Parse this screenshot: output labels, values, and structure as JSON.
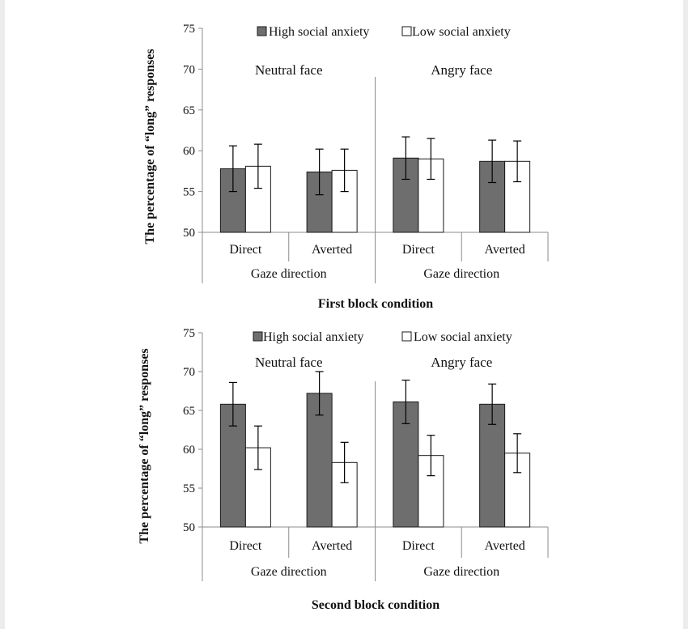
{
  "legend": {
    "high": "High social anxiety",
    "low": "Low social anxiety"
  },
  "colors": {
    "high": "#6e6e6e",
    "low": "#ffffff",
    "stroke": "#1a1a1a",
    "axis": "#8c8c8c"
  },
  "chart_data": [
    {
      "type": "bar",
      "caption": "First block condition",
      "ylabel": "The percentage of “long” responses",
      "ylim": [
        50,
        75
      ],
      "yticks": [
        50,
        55,
        60,
        65,
        70,
        75
      ],
      "groups": [
        {
          "face": "Neutral face",
          "xlabel": "Gaze direction",
          "categories": [
            "Direct",
            "Averted"
          ],
          "series": [
            {
              "name": "High social anxiety",
              "values": [
                57.8,
                57.4
              ],
              "errors": [
                2.8,
                2.8
              ]
            },
            {
              "name": "Low social anxiety",
              "values": [
                58.1,
                57.6
              ],
              "errors": [
                2.7,
                2.6
              ]
            }
          ]
        },
        {
          "face": "Angry face",
          "xlabel": "Gaze direction",
          "categories": [
            "Direct",
            "Averted"
          ],
          "series": [
            {
              "name": "High social anxiety",
              "values": [
                59.1,
                58.7
              ],
              "errors": [
                2.6,
                2.6
              ]
            },
            {
              "name": "Low social anxiety",
              "values": [
                59.0,
                58.7
              ],
              "errors": [
                2.5,
                2.5
              ]
            }
          ]
        }
      ]
    },
    {
      "type": "bar",
      "caption": "Second block condition",
      "ylabel": "The percentage of “long” responses",
      "ylim": [
        50,
        75
      ],
      "yticks": [
        50,
        55,
        60,
        65,
        70,
        75
      ],
      "groups": [
        {
          "face": "Neutral face",
          "xlabel": "Gaze direction",
          "categories": [
            "Direct",
            "Averted"
          ],
          "series": [
            {
              "name": "High social anxiety",
              "values": [
                65.8,
                67.2
              ],
              "errors": [
                2.8,
                2.8
              ]
            },
            {
              "name": "Low social anxiety",
              "values": [
                60.2,
                58.3
              ],
              "errors": [
                2.8,
                2.6
              ]
            }
          ]
        },
        {
          "face": "Angry face",
          "xlabel": "Gaze direction",
          "categories": [
            "Direct",
            "Averted"
          ],
          "series": [
            {
              "name": "High social anxiety",
              "values": [
                66.1,
                65.8
              ],
              "errors": [
                2.8,
                2.6
              ]
            },
            {
              "name": "Low social anxiety",
              "values": [
                59.2,
                59.5
              ],
              "errors": [
                2.6,
                2.5
              ]
            }
          ]
        }
      ]
    }
  ]
}
